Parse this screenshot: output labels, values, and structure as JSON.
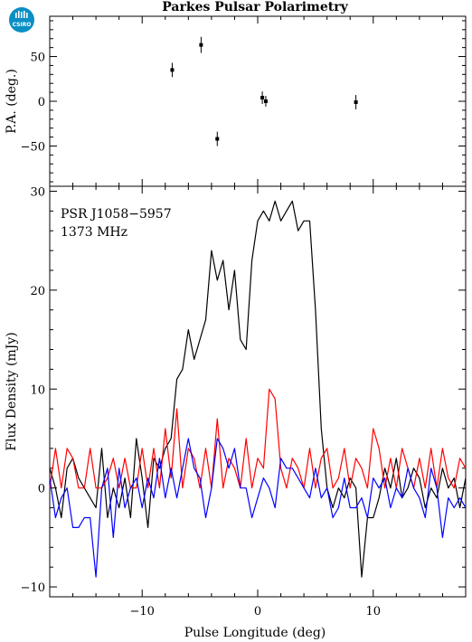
{
  "title": "Parkes Pulsar Polarimetry",
  "logo": {
    "text": "CSIRO",
    "color": "#0a8fc4"
  },
  "chart_data": [
    {
      "type": "scatter",
      "ylabel": "P.A. (deg.)",
      "xlim": [
        -18,
        18
      ],
      "ylim": [
        -95,
        95
      ],
      "yticks": [
        -50,
        0,
        50
      ],
      "points": [
        {
          "x": -7.4,
          "y": 35,
          "err": 8
        },
        {
          "x": -4.9,
          "y": 63,
          "err": 9
        },
        {
          "x": -3.5,
          "y": -42,
          "err": 8
        },
        {
          "x": 0.4,
          "y": 4,
          "err": 7
        },
        {
          "x": 0.7,
          "y": 0,
          "err": 6
        },
        {
          "x": 8.5,
          "y": -1,
          "err": 8
        }
      ]
    },
    {
      "type": "line",
      "xlabel": "Pulse Longitude (deg)",
      "ylabel": "Flux Density (mJy)",
      "xlim": [
        -18,
        18
      ],
      "ylim": [
        -11,
        30.5
      ],
      "xticks": [
        -10,
        0,
        10
      ],
      "yticks": [
        -10,
        0,
        10,
        20,
        30
      ],
      "annotations": [
        "PSR J1058−5957",
        "1373 MHz"
      ],
      "series": [
        {
          "color": "#000000",
          "x": [
            -18.0,
            -17.5,
            -17.0,
            -16.5,
            -16.0,
            -15.5,
            -15.0,
            -14.5,
            -14.0,
            -13.5,
            -13.0,
            -12.5,
            -12.0,
            -11.5,
            -11.0,
            -10.5,
            -10.0,
            -9.5,
            -9.0,
            -8.5,
            -8.0,
            -7.5,
            -7.0,
            -6.5,
            -6.0,
            -5.5,
            -5.0,
            -4.5,
            -4.0,
            -3.5,
            -3.0,
            -2.5,
            -2.0,
            -1.5,
            -1.0,
            -0.5,
            0.0,
            0.5,
            1.0,
            1.5,
            2.0,
            2.5,
            3.0,
            3.5,
            4.0,
            4.5,
            5.0,
            5.5,
            6.0,
            6.5,
            7.0,
            7.5,
            8.0,
            8.5,
            9.0,
            9.5,
            10.0,
            10.5,
            11.0,
            11.5,
            12.0,
            12.5,
            13.0,
            13.5,
            14.0,
            14.5,
            15.0,
            15.5,
            16.0,
            16.5,
            17.0,
            17.5,
            18.0
          ],
          "y": [
            2,
            0,
            -3,
            2,
            3,
            1,
            0,
            -1,
            -2,
            4,
            -3,
            0,
            -2,
            1,
            -3,
            5,
            1,
            -4,
            3,
            2,
            4,
            5,
            11,
            12,
            16,
            13,
            15,
            17,
            24,
            21,
            23,
            18,
            22,
            15,
            14,
            23,
            27,
            28,
            27,
            29,
            27,
            28,
            29,
            26,
            27,
            27,
            18,
            6,
            0,
            -2,
            0,
            -1,
            1,
            0,
            -9,
            -3,
            -3,
            -1,
            2,
            0,
            3,
            -1,
            0,
            2,
            1,
            -2,
            0,
            -1,
            2,
            0,
            1,
            -2,
            1
          ],
          "ydata": [
            2,
            0,
            -3,
            2,
            3,
            1,
            0,
            -1,
            -2,
            4,
            -3,
            0,
            -2,
            1,
            -3,
            5,
            1,
            -4,
            3,
            2,
            4,
            5,
            11,
            12,
            16,
            13,
            15,
            17,
            24,
            21,
            23,
            18,
            22,
            15,
            14,
            23,
            27,
            28,
            27,
            29,
            27,
            28,
            29,
            26,
            27,
            27,
            18,
            6,
            0,
            -2,
            0,
            -1,
            1,
            0,
            -9,
            -3,
            -3,
            -1,
            2,
            0,
            3,
            -1,
            0,
            2,
            1,
            -2,
            0,
            -1,
            2,
            0,
            1,
            -2,
            1
          ]
        },
        {
          "color": "#ff0000",
          "x": [
            -18.0,
            -17.5,
            -17.0,
            -16.5,
            -16.0,
            -15.5,
            -15.0,
            -14.5,
            -14.0,
            -13.5,
            -13.0,
            -12.5,
            -12.0,
            -11.5,
            -11.0,
            -10.5,
            -10.0,
            -9.5,
            -9.0,
            -8.5,
            -8.0,
            -7.5,
            -7.0,
            -6.5,
            -6.0,
            -5.5,
            -5.0,
            -4.5,
            -4.0,
            -3.5,
            -3.0,
            -2.5,
            -2.0,
            -1.5,
            -1.0,
            -0.5,
            0.0,
            0.5,
            1.0,
            1.5,
            2.0,
            2.5,
            3.0,
            3.5,
            4.0,
            4.5,
            5.0,
            5.5,
            6.0,
            6.5,
            7.0,
            7.5,
            8.0,
            8.5,
            9.0,
            9.5,
            10.0,
            10.5,
            11.0,
            11.5,
            12.0,
            12.5,
            13.0,
            13.5,
            14.0,
            14.5,
            15.0,
            15.5,
            16.0,
            16.5,
            17.0,
            17.5,
            18.0
          ],
          "y": [
            0,
            4,
            0,
            4,
            3,
            0,
            0,
            4,
            0,
            0,
            1,
            3,
            0,
            3,
            0,
            0,
            4,
            0,
            4,
            0,
            6,
            1,
            8,
            0,
            4,
            3,
            0,
            4,
            0,
            7,
            0,
            3,
            2,
            0,
            5,
            0,
            3,
            2,
            10,
            9,
            2,
            0,
            3,
            2,
            0,
            4,
            0,
            3,
            4,
            0,
            1,
            4,
            0,
            3,
            2,
            0,
            6,
            4,
            0,
            3,
            0,
            4,
            2,
            0,
            3,
            0,
            4,
            0,
            4,
            1,
            0,
            3,
            2
          ],
          "ydata": [
            0,
            4,
            0,
            4,
            3,
            0,
            0,
            4,
            0,
            0,
            1,
            3,
            0,
            3,
            0,
            0,
            4,
            0,
            4,
            0,
            6,
            1,
            8,
            0,
            4,
            3,
            0,
            4,
            0,
            7,
            0,
            3,
            2,
            0,
            5,
            0,
            3,
            2,
            10,
            9,
            2,
            0,
            3,
            2,
            0,
            4,
            0,
            3,
            4,
            0,
            1,
            4,
            0,
            3,
            2,
            0,
            6,
            4,
            0,
            3,
            0,
            4,
            2,
            0,
            3,
            0,
            4,
            0,
            4,
            1,
            0,
            3,
            2
          ]
        },
        {
          "color": "#0000ff",
          "x": [
            -18.0,
            -17.5,
            -17.0,
            -16.5,
            -16.0,
            -15.5,
            -15.0,
            -14.5,
            -14.0,
            -13.5,
            -13.0,
            -12.5,
            -12.0,
            -11.5,
            -11.0,
            -10.5,
            -10.0,
            -9.5,
            -9.0,
            -8.5,
            -8.0,
            -7.5,
            -7.0,
            -6.5,
            -6.0,
            -5.5,
            -5.0,
            -4.5,
            -4.0,
            -3.5,
            -3.0,
            -2.5,
            -2.0,
            -1.5,
            -1.0,
            -0.5,
            0.0,
            0.5,
            1.0,
            1.5,
            2.0,
            2.5,
            3.0,
            3.5,
            4.0,
            4.5,
            5.0,
            5.5,
            6.0,
            6.5,
            7.0,
            7.5,
            8.0,
            8.5,
            9.0,
            9.5,
            10.0,
            10.5,
            11.0,
            11.5,
            12.0,
            12.5,
            13.0,
            13.5,
            14.0,
            14.5,
            15.0,
            15.5,
            16.0,
            16.5,
            17.0,
            17.5,
            18.0
          ],
          "y": [
            1,
            -3,
            -1,
            0,
            -4,
            -4,
            -3,
            -3,
            -9,
            0,
            2,
            -5,
            2,
            -2,
            0,
            1,
            -2,
            1,
            -1,
            3,
            -1,
            2,
            -1,
            2,
            5,
            2,
            1,
            -3,
            0,
            5,
            4,
            2,
            4,
            0,
            0,
            -3,
            -1,
            1,
            0,
            -2,
            3,
            2,
            2,
            1,
            0,
            -1,
            2,
            -1,
            0,
            -3,
            -2,
            1,
            -2,
            -2,
            -1,
            -3,
            1,
            0,
            1,
            -2,
            0,
            -1,
            2,
            0,
            -1,
            -3,
            2,
            0,
            -5,
            -1,
            -2,
            -1,
            -2
          ],
          "ydata": [
            1,
            -3,
            -1,
            0,
            -4,
            -4,
            -3,
            -3,
            -9,
            0,
            2,
            -5,
            2,
            -2,
            0,
            1,
            -2,
            1,
            -1,
            3,
            -1,
            2,
            -1,
            2,
            5,
            2,
            1,
            -3,
            0,
            5,
            4,
            2,
            4,
            0,
            0,
            -3,
            -1,
            1,
            0,
            -2,
            3,
            2,
            2,
            1,
            0,
            -1,
            2,
            -1,
            0,
            -3,
            -2,
            1,
            -2,
            -2,
            -1,
            -3,
            1,
            0,
            1,
            -2,
            0,
            -1,
            2,
            0,
            -1,
            -3,
            2,
            0,
            -5,
            -1,
            -2,
            -1,
            -2
          ]
        }
      ]
    }
  ]
}
